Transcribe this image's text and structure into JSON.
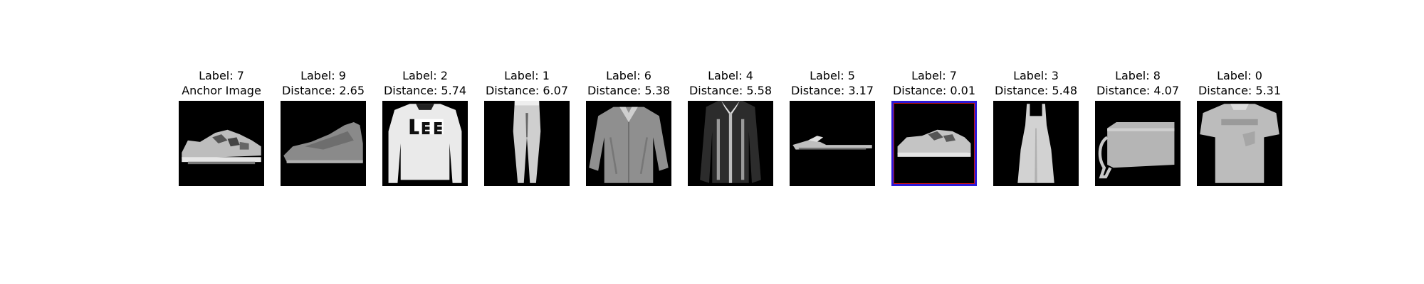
{
  "figure": {
    "panels": [
      {
        "label": "Label: 7",
        "caption": "Anchor Image",
        "icon": "sneaker-icon"
      },
      {
        "label": "Label: 9",
        "caption": "Distance: 2.65",
        "icon": "ankle-boot-icon"
      },
      {
        "label": "Label: 2",
        "caption": "Distance: 5.74",
        "icon": "pullover-icon"
      },
      {
        "label": "Label: 1",
        "caption": "Distance: 6.07",
        "icon": "trouser-icon"
      },
      {
        "label": "Label: 6",
        "caption": "Distance: 5.38",
        "icon": "shirt-icon"
      },
      {
        "label": "Label: 4",
        "caption": "Distance: 5.58",
        "icon": "coat-icon"
      },
      {
        "label": "Label: 5",
        "caption": "Distance: 3.17",
        "icon": "sandal-icon"
      },
      {
        "label": "Label: 7",
        "caption": "Distance: 0.01",
        "icon": "sneaker-icon",
        "highlighted": true
      },
      {
        "label": "Label: 3",
        "caption": "Distance: 5.48",
        "icon": "dress-icon"
      },
      {
        "label": "Label: 8",
        "caption": "Distance: 4.07",
        "icon": "bag-icon"
      },
      {
        "label": "Label: 0",
        "caption": "Distance: 5.31",
        "icon": "tshirt-icon"
      }
    ],
    "colors": {
      "highlight_outer": "#2c1ad8",
      "highlight_inner": "#c81414",
      "image_background": "#000000"
    }
  }
}
